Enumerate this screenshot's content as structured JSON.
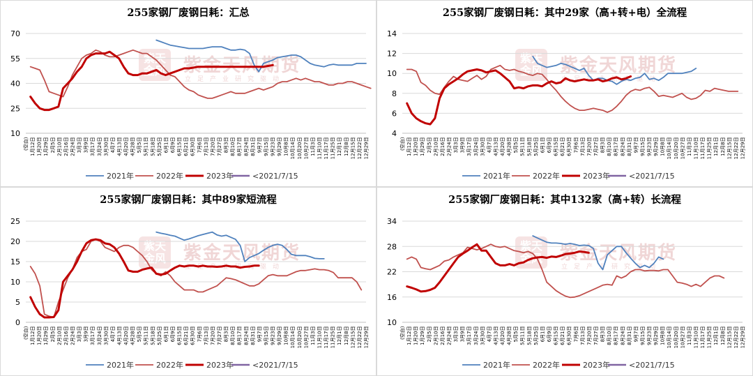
{
  "watermark": {
    "main": "紫金天风期货",
    "sub": "立足产业研究驱动",
    "logo": "紫天金风"
  },
  "legend_order": [
    "2021年",
    "2022年",
    "2023年",
    "<2021/7/15"
  ],
  "colors": {
    "2021": "#4f81bd",
    "2022": "#c0504d",
    "2023": "#c00000",
    "pre": "#8064a2"
  },
  "x_ticks": [
    "(空白)",
    "1月12日",
    "1月20日",
    "1月29日",
    "2月5日",
    "2月10日",
    "2月16日",
    "2月24日",
    "3月3日",
    "3月9日",
    "3月17日",
    "3月24日",
    "3月30日",
    "4月7日",
    "4月13日",
    "4月20日",
    "4月28日",
    "5月5日",
    "5月11日",
    "5月18日",
    "5月25日",
    "6月1日",
    "6月9日",
    "6月15日",
    "6月21日",
    "6月30日",
    "7月6日",
    "7月13日",
    "7月20日",
    "7月27日",
    "8月3日",
    "8月10日",
    "8月17日",
    "8月24日",
    "8月31日",
    "9月7日",
    "9月15日",
    "9月23日",
    "9月29日",
    "10月8日",
    "10月14日",
    "10月20日",
    "10月27日",
    "11月3日",
    "11月10日",
    "11月17日",
    "11月25日",
    "12月1日",
    "12月8日",
    "12月15日",
    "12月22日",
    "12月29日"
  ],
  "chart_data": [
    {
      "type": "line",
      "title": "255家钢厂废钢日耗：汇总",
      "ylim": [
        10,
        70
      ],
      "yticks": [
        10,
        25,
        40,
        55,
        70
      ],
      "series": [
        {
          "name": "2021年",
          "x_start": 28,
          "values": [
            66,
            65,
            64,
            63,
            62.5,
            62,
            61.5,
            61,
            61,
            61,
            61,
            61.5,
            62,
            62,
            62,
            61,
            60,
            60,
            60.5,
            60,
            58,
            51,
            47,
            52,
            53,
            54,
            55.5,
            56,
            56.5,
            57,
            57,
            56,
            54,
            52,
            51,
            50.5,
            50,
            51,
            51.5,
            51,
            51,
            51,
            51,
            52,
            52,
            52
          ]
        },
        {
          "name": "2022年",
          "x_start": 1,
          "values": [
            50,
            49,
            48,
            42,
            35,
            34,
            33,
            32,
            38,
            45,
            50,
            55,
            57,
            58,
            60,
            59,
            57,
            56,
            56,
            57,
            58,
            59,
            60,
            59,
            58,
            58,
            56,
            54,
            51,
            48,
            45,
            44,
            41,
            38,
            36,
            35,
            33,
            32,
            31,
            31,
            32,
            33,
            34,
            35,
            34,
            34,
            34,
            35,
            36,
            37,
            36,
            37,
            38,
            40,
            41,
            41,
            42,
            43,
            42,
            43,
            42,
            41,
            41,
            40,
            39,
            39,
            40,
            40,
            41,
            41,
            40,
            39,
            38,
            37
          ]
        },
        {
          "name": "2023年",
          "x_start": 1,
          "values": [
            32,
            28,
            25,
            24,
            24,
            25,
            26,
            37,
            40,
            43,
            47,
            50,
            55,
            57,
            58,
            58,
            58,
            59,
            57,
            55,
            50,
            46,
            45,
            45,
            46,
            46,
            47,
            48,
            46,
            45,
            46,
            47,
            48,
            49,
            49,
            49.5,
            50,
            50,
            50,
            50,
            50,
            50,
            50,
            50,
            50,
            50,
            50,
            50,
            50,
            50,
            50,
            50.5,
            51
          ]
        }
      ]
    },
    {
      "type": "line",
      "title": "255家钢厂废钢日耗：其中29家（高+转+电）全流程",
      "ylim": [
        4,
        14
      ],
      "yticks": [
        4,
        6,
        8,
        10,
        12,
        14
      ],
      "series": [
        {
          "name": "2021年",
          "x_start": 28,
          "values": [
            11.7,
            11,
            10.8,
            10.6,
            10.7,
            10.8,
            11,
            10.9,
            10.7,
            10.5,
            10.3,
            10.5,
            9.8,
            9.3,
            9.5,
            9.5,
            9.3,
            9.2,
            8.9,
            9.2,
            9.4,
            9.3,
            9.5,
            9.6,
            10,
            9.4,
            9.5,
            9.3,
            9.6,
            10,
            10,
            10,
            10,
            10.1,
            10.2,
            10.5
          ]
        },
        {
          "name": "2022年",
          "x_start": 1,
          "values": [
            10.4,
            10.4,
            10.2,
            9.1,
            8.8,
            8.3,
            8,
            7.9,
            8.6,
            9.2,
            9.7,
            9.4,
            9.3,
            9.2,
            9.5,
            9.8,
            9.4,
            9.7,
            10.4,
            10.6,
            10.8,
            10.4,
            10.3,
            10.4,
            10.2,
            10.1,
            9.9,
            9.8,
            10,
            9.9,
            9.4,
            8.8,
            8.3,
            7.7,
            7.2,
            6.8,
            6.5,
            6.3,
            6.3,
            6.4,
            6.5,
            6.4,
            6.3,
            6.1,
            6.3,
            6.7,
            7.2,
            7.8,
            8.2,
            8.4,
            8.3,
            8.5,
            8.6,
            8.2,
            7.7,
            7.8,
            7.7,
            7.6,
            7.8,
            8,
            7.6,
            7.4,
            7.5,
            7.8,
            8.3,
            8.2,
            8.5,
            8.4,
            8.3,
            8.2,
            8.2,
            8.2
          ]
        },
        {
          "name": "2023年",
          "x_start": 1,
          "values": [
            7,
            6,
            5.5,
            5.2,
            5,
            4.9,
            5.5,
            7.5,
            8.5,
            8.9,
            9.2,
            9.5,
            9.9,
            10.2,
            10.3,
            10.4,
            10.3,
            10.1,
            10.2,
            10.3,
            10,
            9.6,
            9.2,
            8.5,
            8.6,
            8.5,
            8.7,
            8.8,
            8.8,
            8.7,
            9,
            9.2,
            9,
            9.1,
            9.5,
            9.3,
            9.2,
            9.3,
            9.4,
            9.3,
            9.3,
            9.4,
            9.2,
            9.3,
            9.5,
            9.6,
            9.4,
            9.5,
            9.7
          ]
        }
      ]
    },
    {
      "type": "line",
      "title": "255家钢厂废钢日耗：其中89家短流程",
      "ylim": [
        0,
        25
      ],
      "yticks": [
        0,
        5,
        10,
        15,
        20,
        25
      ],
      "series": [
        {
          "name": "2021年",
          "x_start": 28,
          "values": [
            22.3,
            22,
            21.8,
            21.5,
            21.3,
            20.8,
            20.3,
            20.6,
            21,
            21.4,
            21.7,
            22,
            22.3,
            21.6,
            21.3,
            21.5,
            21,
            20.5,
            19,
            15,
            16,
            16.5,
            17,
            17.8,
            18.5,
            19,
            19.3,
            19,
            18,
            16.8,
            16.5,
            16.5,
            16.5,
            16.2,
            15.8,
            15.7,
            15.7
          ]
        },
        {
          "name": "2022年",
          "x_start": 1,
          "values": [
            13.8,
            12,
            9,
            2,
            1.5,
            1.2,
            5,
            8,
            11,
            13,
            16,
            17.5,
            18,
            20,
            20.5,
            20,
            18.5,
            18,
            17.5,
            18.5,
            19,
            19,
            18.5,
            17.5,
            16.5,
            15,
            13,
            12,
            11.5,
            12.5,
            11.5,
            10,
            9,
            8,
            8,
            8,
            7.5,
            7.5,
            8,
            8.5,
            9,
            10,
            11,
            10.8,
            10.5,
            10,
            9.5,
            9,
            9,
            9.5,
            10.5,
            11.5,
            11.8,
            11.5,
            11.5,
            11.5,
            12,
            12.5,
            12.8,
            12.8,
            13,
            13.2,
            13,
            13,
            12.8,
            12.3,
            11,
            11,
            11,
            11,
            10,
            8
          ]
        },
        {
          "name": "2023年",
          "x_start": 1,
          "values": [
            6.2,
            3.8,
            2,
            1.2,
            1.2,
            1.3,
            3,
            10,
            11.5,
            13,
            15,
            17.5,
            19.5,
            20.3,
            20.5,
            20.3,
            19.5,
            19.3,
            18.5,
            17,
            15,
            12.8,
            12.5,
            12.5,
            13,
            13.3,
            13.5,
            12,
            11.8,
            12,
            12.8,
            13.5,
            14,
            13.8,
            14,
            14,
            13.8,
            14,
            13.8,
            13.8,
            13.7,
            13.8,
            14,
            13.8,
            13.8,
            13.5,
            13.7,
            13.8,
            14,
            14
          ]
        }
      ]
    },
    {
      "type": "line",
      "title": "255家钢厂废钢日耗：其中132家（高+转）长流程",
      "ylim": [
        10,
        34
      ],
      "yticks": [
        10,
        16,
        22,
        28,
        34
      ],
      "series": [
        {
          "name": "2021年",
          "x_start": 28,
          "values": [
            30.5,
            30,
            29.5,
            29,
            28.8,
            28.8,
            28.7,
            28.5,
            28.7,
            28.5,
            28.2,
            28.3,
            28.2,
            27.5,
            24,
            22.5,
            26,
            27,
            28,
            28,
            26.5,
            25.2,
            24,
            23,
            23.5,
            23,
            24,
            25.5,
            25
          ]
        },
        {
          "name": "2022年",
          "x_start": 1,
          "values": [
            25,
            25.5,
            25,
            23,
            22.7,
            22.5,
            23,
            23.5,
            24.5,
            24.8,
            25.5,
            26,
            26.5,
            27.8,
            27.5,
            27.2,
            27.5,
            28,
            28.5,
            28,
            27.8,
            28,
            27.5,
            27,
            26.8,
            26.5,
            26.8,
            26.3,
            25,
            22.5,
            19.5,
            18.5,
            17.5,
            16.8,
            16.2,
            15.9,
            16,
            16.3,
            16.8,
            17.3,
            17.8,
            18.3,
            18.8,
            19,
            18.8,
            21,
            20.5,
            21,
            22,
            22.5,
            22.5,
            22.2,
            22.3,
            22.3,
            22.2,
            22.5,
            22.5,
            21,
            19.5,
            19.3,
            19,
            18.5,
            19,
            18.5,
            19.5,
            20.5,
            21,
            21,
            20.5
          ]
        },
        {
          "name": "2023年",
          "x_start": 1,
          "values": [
            18.5,
            18.2,
            17.8,
            17.3,
            17.4,
            17.7,
            18.2,
            19.5,
            21,
            22.5,
            24,
            25.5,
            26.3,
            27,
            27.8,
            28.5,
            27,
            27,
            25.5,
            24,
            23.5,
            23.5,
            23.8,
            23.5,
            24,
            24.2,
            24.8,
            25.2,
            25.4,
            25.5,
            25.3,
            25.6,
            25.5,
            25.8,
            26.2,
            26.3,
            26.5,
            26.8,
            26.7,
            26.5
          ]
        }
      ]
    }
  ]
}
